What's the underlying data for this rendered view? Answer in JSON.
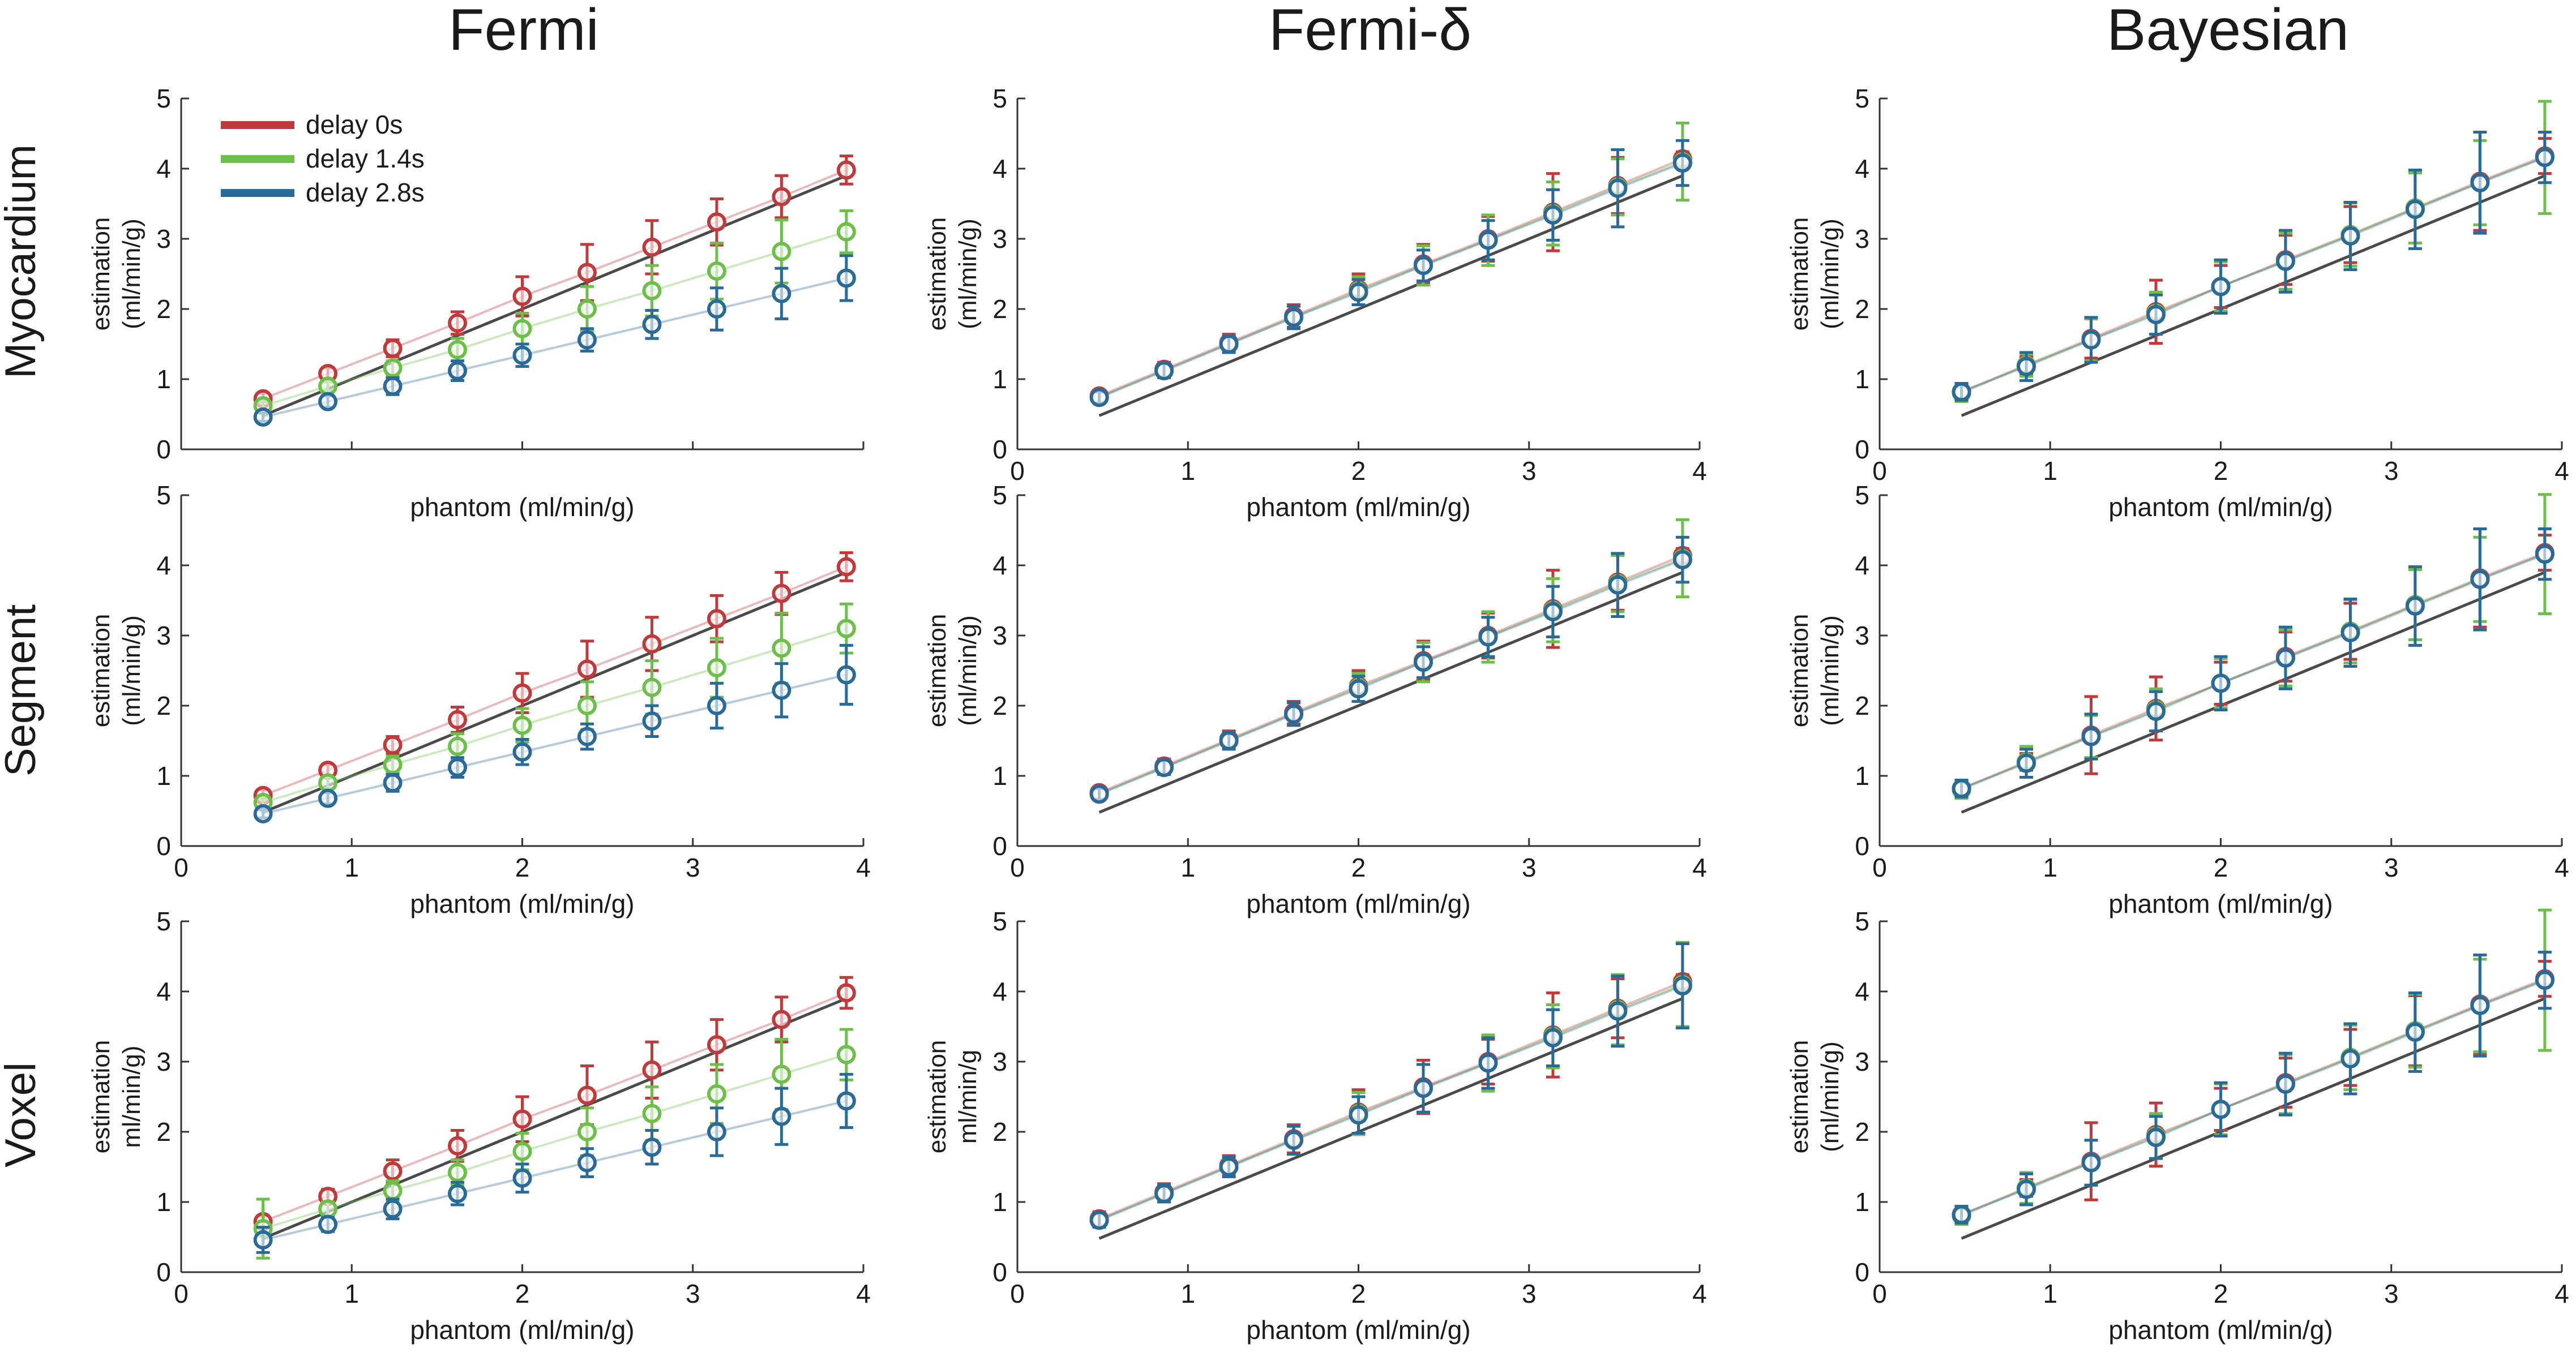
{
  "colors": {
    "delay0": "#c0393b",
    "delay14": "#6cc04a",
    "delay28": "#2a6a98",
    "identity": "#4a4a4a"
  },
  "column_titles": [
    "Fermi",
    "Fermi-δ",
    "Bayesian"
  ],
  "row_titles": [
    "Myocardium",
    "Segment",
    "Voxel"
  ],
  "legend": {
    "items": [
      "delay 0s",
      "delay 1.4s",
      "delay 2.8s"
    ]
  },
  "chart_data": [
    {
      "type": "scatter",
      "id": "fermi-myocardium",
      "row": 0,
      "col": 0,
      "xlabel": "phantom (ml/min/g)",
      "ylabel": [
        "estimation",
        "(ml/min/g)"
      ],
      "xlim": [
        0,
        4
      ],
      "ylim": [
        0,
        5
      ],
      "xticks": [
        "0",
        "1",
        "2",
        "3",
        "4"
      ],
      "yticks": [
        "0",
        "1",
        "2",
        "3",
        "4",
        "5"
      ],
      "show_xtick_labels": false,
      "x": [
        0.48,
        0.86,
        1.24,
        1.62,
        2.0,
        2.38,
        2.76,
        3.14,
        3.52,
        3.9
      ],
      "series": [
        {
          "name": "delay 0s",
          "y": [
            0.72,
            1.08,
            1.44,
            1.8,
            2.18,
            2.52,
            2.88,
            3.24,
            3.6,
            3.98
          ],
          "err": [
            0.08,
            0.08,
            0.12,
            0.16,
            0.28,
            0.4,
            0.38,
            0.33,
            0.3,
            0.2
          ]
        },
        {
          "name": "delay 1.4s",
          "y": [
            0.62,
            0.9,
            1.16,
            1.42,
            1.72,
            2.0,
            2.26,
            2.54,
            2.82,
            3.1
          ],
          "err": [
            0.06,
            0.06,
            0.1,
            0.16,
            0.22,
            0.32,
            0.36,
            0.4,
            0.45,
            0.3
          ]
        },
        {
          "name": "delay 2.8s",
          "y": [
            0.46,
            0.68,
            0.9,
            1.12,
            1.34,
            1.56,
            1.78,
            2.0,
            2.22,
            2.44
          ],
          "err": [
            0.06,
            0.08,
            0.12,
            0.14,
            0.16,
            0.16,
            0.2,
            0.3,
            0.36,
            0.32
          ]
        }
      ]
    },
    {
      "type": "scatter",
      "id": "fermid-myocardium",
      "row": 0,
      "col": 1,
      "xlabel": "phantom (ml/min/g)",
      "ylabel": [
        "estimation",
        "(ml/min/g)"
      ],
      "xlim": [
        0,
        4
      ],
      "ylim": [
        0,
        5
      ],
      "xticks": [
        "0",
        "1",
        "2",
        "3",
        "4"
      ],
      "yticks": [
        "0",
        "1",
        "2",
        "3",
        "4",
        "5"
      ],
      "show_xtick_labels": true,
      "x": [
        0.48,
        0.86,
        1.24,
        1.62,
        2.0,
        2.38,
        2.76,
        3.14,
        3.52,
        3.9
      ],
      "series": [
        {
          "name": "delay 0s",
          "y": [
            0.76,
            1.14,
            1.52,
            1.9,
            2.28,
            2.64,
            3.0,
            3.38,
            3.76,
            4.14
          ],
          "err": [
            0.08,
            0.1,
            0.12,
            0.16,
            0.22,
            0.28,
            0.32,
            0.55,
            0.4,
            0.1
          ]
        },
        {
          "name": "delay 1.4s",
          "y": [
            0.74,
            1.12,
            1.5,
            1.88,
            2.26,
            2.62,
            2.98,
            3.36,
            3.74,
            4.1
          ],
          "err": [
            0.08,
            0.1,
            0.12,
            0.16,
            0.2,
            0.28,
            0.36,
            0.45,
            0.4,
            0.55
          ]
        },
        {
          "name": "delay 2.8s",
          "y": [
            0.74,
            1.12,
            1.5,
            1.88,
            2.24,
            2.62,
            2.98,
            3.34,
            3.72,
            4.08
          ],
          "err": [
            0.08,
            0.1,
            0.12,
            0.16,
            0.18,
            0.22,
            0.28,
            0.36,
            0.55,
            0.32
          ]
        }
      ]
    },
    {
      "type": "scatter",
      "id": "bayesian-myocardium",
      "row": 0,
      "col": 2,
      "xlabel": "phantom (ml/min/g)",
      "ylabel": [
        "estimation",
        "(ml/min/g)"
      ],
      "xlim": [
        0,
        4
      ],
      "ylim": [
        0,
        5
      ],
      "xticks": [
        "0",
        "1",
        "2",
        "3",
        "4"
      ],
      "yticks": [
        "0",
        "1",
        "2",
        "3",
        "4",
        "5"
      ],
      "show_xtick_labels": true,
      "x": [
        0.48,
        0.86,
        1.24,
        1.62,
        2.0,
        2.38,
        2.76,
        3.14,
        3.52,
        3.9
      ],
      "series": [
        {
          "name": "delay 0s",
          "y": [
            0.82,
            1.2,
            1.58,
            1.96,
            2.32,
            2.7,
            3.06,
            3.44,
            3.82,
            4.18
          ],
          "err": [
            0.1,
            0.12,
            0.28,
            0.45,
            0.3,
            0.35,
            0.4,
            0.5,
            0.7,
            0.25
          ]
        },
        {
          "name": "delay 1.4s",
          "y": [
            0.8,
            1.2,
            1.56,
            1.94,
            2.32,
            2.68,
            3.06,
            3.44,
            3.8,
            4.16
          ],
          "err": [
            0.12,
            0.16,
            0.3,
            0.3,
            0.35,
            0.4,
            0.45,
            0.5,
            0.6,
            0.8
          ]
        },
        {
          "name": "delay 2.8s",
          "y": [
            0.82,
            1.18,
            1.56,
            1.92,
            2.32,
            2.68,
            3.04,
            3.42,
            3.8,
            4.16
          ],
          "err": [
            0.12,
            0.2,
            0.32,
            0.28,
            0.38,
            0.44,
            0.48,
            0.56,
            0.72,
            0.36
          ]
        }
      ]
    },
    {
      "type": "scatter",
      "id": "fermi-segment",
      "row": 1,
      "col": 0,
      "xlabel": "phantom (ml/min/g)",
      "ylabel": [
        "estimation",
        "(ml/min/g)"
      ],
      "xlim": [
        0,
        4
      ],
      "ylim": [
        0,
        5
      ],
      "xticks": [
        "0",
        "1",
        "2",
        "3",
        "4"
      ],
      "yticks": [
        "0",
        "1",
        "2",
        "3",
        "4",
        "5"
      ],
      "show_xtick_labels": true,
      "x": [
        0.48,
        0.86,
        1.24,
        1.62,
        2.0,
        2.38,
        2.76,
        3.14,
        3.52,
        3.9
      ],
      "series": [
        {
          "name": "delay 0s",
          "y": [
            0.72,
            1.08,
            1.44,
            1.8,
            2.18,
            2.52,
            2.88,
            3.24,
            3.6,
            3.98
          ],
          "err": [
            0.08,
            0.08,
            0.12,
            0.18,
            0.28,
            0.4,
            0.38,
            0.33,
            0.3,
            0.2
          ]
        },
        {
          "name": "delay 1.4s",
          "y": [
            0.62,
            0.9,
            1.16,
            1.42,
            1.72,
            2.0,
            2.26,
            2.54,
            2.82,
            3.1
          ],
          "err": [
            0.06,
            0.08,
            0.12,
            0.18,
            0.24,
            0.34,
            0.38,
            0.42,
            0.5,
            0.35
          ]
        },
        {
          "name": "delay 2.8s",
          "y": [
            0.46,
            0.68,
            0.9,
            1.12,
            1.34,
            1.56,
            1.78,
            2.0,
            2.22,
            2.44
          ],
          "err": [
            0.06,
            0.08,
            0.12,
            0.14,
            0.18,
            0.18,
            0.22,
            0.32,
            0.38,
            0.42
          ]
        }
      ]
    },
    {
      "type": "scatter",
      "id": "fermid-segment",
      "row": 1,
      "col": 1,
      "xlabel": "phantom (ml/min/g)",
      "ylabel": [
        "estimation",
        "(ml/min/g)"
      ],
      "xlim": [
        0,
        4
      ],
      "ylim": [
        0,
        5
      ],
      "xticks": [
        "0",
        "1",
        "2",
        "3",
        "4"
      ],
      "yticks": [
        "0",
        "1",
        "2",
        "3",
        "4",
        "5"
      ],
      "show_xtick_labels": true,
      "x": [
        0.48,
        0.86,
        1.24,
        1.62,
        2.0,
        2.38,
        2.76,
        3.14,
        3.52,
        3.9
      ],
      "series": [
        {
          "name": "delay 0s",
          "y": [
            0.76,
            1.14,
            1.52,
            1.9,
            2.28,
            2.64,
            3.0,
            3.38,
            3.76,
            4.14
          ],
          "err": [
            0.08,
            0.1,
            0.12,
            0.16,
            0.22,
            0.28,
            0.32,
            0.55,
            0.4,
            0.1
          ]
        },
        {
          "name": "delay 1.4s",
          "y": [
            0.74,
            1.12,
            1.5,
            1.88,
            2.26,
            2.62,
            2.98,
            3.36,
            3.74,
            4.1
          ],
          "err": [
            0.08,
            0.1,
            0.12,
            0.16,
            0.2,
            0.28,
            0.36,
            0.45,
            0.4,
            0.55
          ]
        },
        {
          "name": "delay 2.8s",
          "y": [
            0.74,
            1.12,
            1.5,
            1.88,
            2.24,
            2.62,
            2.98,
            3.34,
            3.72,
            4.08
          ],
          "err": [
            0.08,
            0.1,
            0.12,
            0.16,
            0.18,
            0.22,
            0.28,
            0.36,
            0.45,
            0.32
          ]
        }
      ]
    },
    {
      "type": "scatter",
      "id": "bayesian-segment",
      "row": 1,
      "col": 2,
      "xlabel": "phantom (ml/min/g)",
      "ylabel": [
        "estimation",
        "(ml/min/g)"
      ],
      "xlim": [
        0,
        4
      ],
      "ylim": [
        0,
        5
      ],
      "xticks": [
        "0",
        "1",
        "2",
        "3",
        "4"
      ],
      "yticks": [
        "0",
        "1",
        "2",
        "3",
        "4",
        "5"
      ],
      "show_xtick_labels": true,
      "x": [
        0.48,
        0.86,
        1.24,
        1.62,
        2.0,
        2.38,
        2.76,
        3.14,
        3.52,
        3.9
      ],
      "series": [
        {
          "name": "delay 0s",
          "y": [
            0.82,
            1.2,
            1.58,
            1.96,
            2.32,
            2.7,
            3.06,
            3.44,
            3.82,
            4.18
          ],
          "err": [
            0.1,
            0.12,
            0.55,
            0.45,
            0.3,
            0.35,
            0.4,
            0.5,
            0.7,
            0.25
          ]
        },
        {
          "name": "delay 1.4s",
          "y": [
            0.8,
            1.2,
            1.56,
            1.94,
            2.32,
            2.68,
            3.06,
            3.44,
            3.8,
            4.16
          ],
          "err": [
            0.12,
            0.22,
            0.3,
            0.3,
            0.35,
            0.4,
            0.45,
            0.5,
            0.6,
            0.85
          ]
        },
        {
          "name": "delay 2.8s",
          "y": [
            0.82,
            1.18,
            1.56,
            1.92,
            2.32,
            2.68,
            3.04,
            3.42,
            3.8,
            4.16
          ],
          "err": [
            0.12,
            0.2,
            0.32,
            0.28,
            0.38,
            0.44,
            0.48,
            0.56,
            0.72,
            0.36
          ]
        }
      ]
    },
    {
      "type": "scatter",
      "id": "fermi-voxel",
      "row": 2,
      "col": 0,
      "xlabel": "phantom (ml/min/g)",
      "ylabel": [
        "estimation",
        "ml/min/g)"
      ],
      "xlim": [
        0,
        4
      ],
      "ylim": [
        0,
        5
      ],
      "xticks": [
        "0",
        "1",
        "2",
        "3",
        "4"
      ],
      "yticks": [
        "0",
        "1",
        "2",
        "3",
        "4",
        "5"
      ],
      "show_xtick_labels": true,
      "x": [
        0.48,
        0.86,
        1.24,
        1.62,
        2.0,
        2.38,
        2.76,
        3.14,
        3.52,
        3.9
      ],
      "series": [
        {
          "name": "delay 0s",
          "y": [
            0.72,
            1.08,
            1.44,
            1.8,
            2.18,
            2.52,
            2.88,
            3.24,
            3.6,
            3.98
          ],
          "err": [
            0.08,
            0.1,
            0.16,
            0.22,
            0.32,
            0.42,
            0.4,
            0.36,
            0.32,
            0.22
          ]
        },
        {
          "name": "delay 1.4s",
          "y": [
            0.62,
            0.9,
            1.16,
            1.42,
            1.72,
            2.0,
            2.26,
            2.54,
            2.82,
            3.1
          ],
          "err": [
            0.42,
            0.1,
            0.14,
            0.18,
            0.26,
            0.34,
            0.38,
            0.42,
            0.5,
            0.36
          ]
        },
        {
          "name": "delay 2.8s",
          "y": [
            0.46,
            0.68,
            0.9,
            1.12,
            1.34,
            1.56,
            1.78,
            2.0,
            2.22,
            2.44
          ],
          "err": [
            0.18,
            0.1,
            0.14,
            0.16,
            0.2,
            0.2,
            0.24,
            0.34,
            0.4,
            0.38
          ]
        }
      ]
    },
    {
      "type": "scatter",
      "id": "fermid-voxel",
      "row": 2,
      "col": 1,
      "xlabel": "phantom (ml/min/g)",
      "ylabel": [
        "estimation",
        "ml/min/g"
      ],
      "xlim": [
        0,
        4
      ],
      "ylim": [
        0,
        5
      ],
      "xticks": [
        "0",
        "1",
        "2",
        "3",
        "4"
      ],
      "yticks": [
        "0",
        "1",
        "2",
        "3",
        "4",
        "5"
      ],
      "show_xtick_labels": true,
      "x": [
        0.48,
        0.86,
        1.24,
        1.62,
        2.0,
        2.38,
        2.76,
        3.14,
        3.52,
        3.9
      ],
      "series": [
        {
          "name": "delay 0s",
          "y": [
            0.76,
            1.14,
            1.52,
            1.9,
            2.28,
            2.64,
            3.0,
            3.38,
            3.76,
            4.14
          ],
          "err": [
            0.1,
            0.12,
            0.14,
            0.2,
            0.32,
            0.38,
            0.32,
            0.6,
            0.42,
            0.1
          ]
        },
        {
          "name": "delay 1.4s",
          "y": [
            0.74,
            1.12,
            1.5,
            1.88,
            2.26,
            2.62,
            2.98,
            3.36,
            3.74,
            4.1
          ],
          "err": [
            0.1,
            0.12,
            0.14,
            0.2,
            0.3,
            0.34,
            0.4,
            0.45,
            0.5,
            0.6
          ]
        },
        {
          "name": "delay 2.8s",
          "y": [
            0.74,
            1.12,
            1.5,
            1.88,
            2.24,
            2.62,
            2.98,
            3.34,
            3.72,
            4.08
          ],
          "err": [
            0.1,
            0.12,
            0.14,
            0.2,
            0.26,
            0.34,
            0.36,
            0.4,
            0.5,
            0.6
          ]
        }
      ]
    },
    {
      "type": "scatter",
      "id": "bayesian-voxel",
      "row": 2,
      "col": 2,
      "xlabel": "phantom (ml/min/g)",
      "ylabel": [
        "estimation",
        "(ml/min/g)"
      ],
      "xlim": [
        0,
        4
      ],
      "ylim": [
        0,
        5
      ],
      "xticks": [
        "0",
        "1",
        "2",
        "3",
        "4"
      ],
      "yticks": [
        "0",
        "1",
        "2",
        "3",
        "4",
        "5"
      ],
      "show_xtick_labels": true,
      "x": [
        0.48,
        0.86,
        1.24,
        1.62,
        2.0,
        2.38,
        2.76,
        3.14,
        3.52,
        3.9
      ],
      "series": [
        {
          "name": "delay 0s",
          "y": [
            0.82,
            1.2,
            1.58,
            1.96,
            2.32,
            2.7,
            3.06,
            3.44,
            3.82,
            4.18
          ],
          "err": [
            0.1,
            0.12,
            0.55,
            0.45,
            0.3,
            0.35,
            0.4,
            0.5,
            0.7,
            0.25
          ]
        },
        {
          "name": "delay 1.4s",
          "y": [
            0.8,
            1.2,
            1.56,
            1.94,
            2.32,
            2.68,
            3.06,
            3.44,
            3.8,
            4.16
          ],
          "err": [
            0.12,
            0.22,
            0.32,
            0.32,
            0.36,
            0.42,
            0.46,
            0.52,
            0.66,
            1.0
          ]
        },
        {
          "name": "delay 2.8s",
          "y": [
            0.82,
            1.18,
            1.56,
            1.92,
            2.32,
            2.68,
            3.04,
            3.42,
            3.8,
            4.16
          ],
          "err": [
            0.12,
            0.22,
            0.32,
            0.3,
            0.38,
            0.44,
            0.5,
            0.56,
            0.72,
            0.4
          ]
        }
      ]
    }
  ]
}
